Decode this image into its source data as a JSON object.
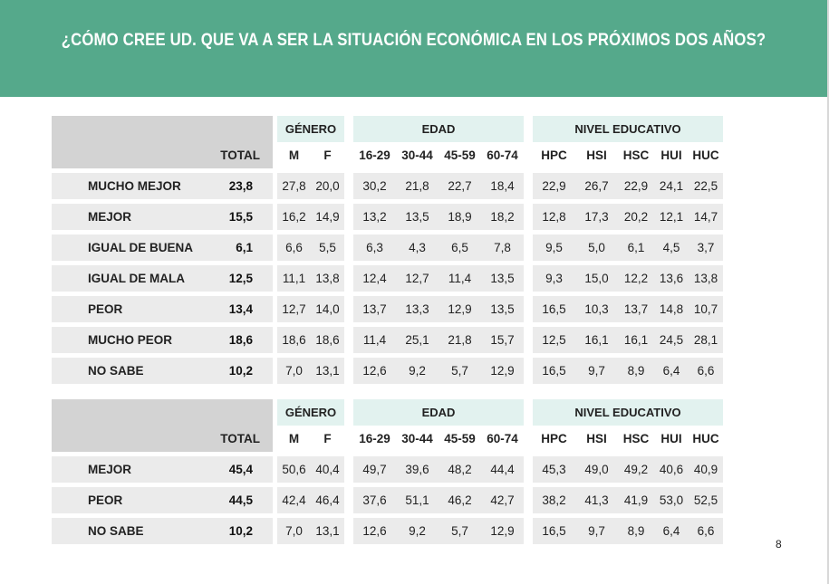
{
  "title": "¿CÓMO CREE UD. QUE VA A SER LA SITUACIÓN ECONÓMICA EN LOS PRÓXIMOS DOS AÑOS?",
  "page_number": "8",
  "colors": {
    "header_bg": "#55a98b",
    "row_bg": "#ebebeb",
    "group_header_bg": "#e2f2ef"
  },
  "group_headers": {
    "genero": "GÉNERO",
    "edad": "EDAD",
    "nivel": "NIVEL EDUCATIVO"
  },
  "columns": {
    "total": "TOTAL",
    "genero": [
      "M",
      "F"
    ],
    "edad": [
      "16-29",
      "30-44",
      "45-59",
      "60-74"
    ],
    "nivel": [
      "HPC",
      "HSI",
      "HSC",
      "HUI",
      "HUC"
    ]
  },
  "table1": {
    "rows": [
      {
        "label": "MUCHO MEJOR",
        "total": "23,8",
        "genero": [
          "27,8",
          "20,0"
        ],
        "edad": [
          "30,2",
          "21,8",
          "22,7",
          "18,4"
        ],
        "nivel": [
          "22,9",
          "26,7",
          "22,9",
          "24,1",
          "22,5"
        ]
      },
      {
        "label": "MEJOR",
        "total": "15,5",
        "genero": [
          "16,2",
          "14,9"
        ],
        "edad": [
          "13,2",
          "13,5",
          "18,9",
          "18,2"
        ],
        "nivel": [
          "12,8",
          "17,3",
          "20,2",
          "12,1",
          "14,7"
        ]
      },
      {
        "label": "IGUAL DE BUENA",
        "total": "6,1",
        "genero": [
          "6,6",
          "5,5"
        ],
        "edad": [
          "6,3",
          "4,3",
          "6,5",
          "7,8"
        ],
        "nivel": [
          "9,5",
          "5,0",
          "6,1",
          "4,5",
          "3,7"
        ]
      },
      {
        "label": "IGUAL DE MALA",
        "total": "12,5",
        "genero": [
          "11,1",
          "13,8"
        ],
        "edad": [
          "12,4",
          "12,7",
          "11,4",
          "13,5"
        ],
        "nivel": [
          "9,3",
          "15,0",
          "12,2",
          "13,6",
          "13,8"
        ]
      },
      {
        "label": "PEOR",
        "total": "13,4",
        "genero": [
          "12,7",
          "14,0"
        ],
        "edad": [
          "13,7",
          "13,3",
          "12,9",
          "13,5"
        ],
        "nivel": [
          "16,5",
          "10,3",
          "13,7",
          "14,8",
          "10,7"
        ]
      },
      {
        "label": "MUCHO PEOR",
        "total": "18,6",
        "genero": [
          "18,6",
          "18,6"
        ],
        "edad": [
          "11,4",
          "25,1",
          "21,8",
          "15,7"
        ],
        "nivel": [
          "12,5",
          "16,1",
          "16,1",
          "24,5",
          "28,1"
        ]
      },
      {
        "label": "NO SABE",
        "total": "10,2",
        "genero": [
          "7,0",
          "13,1"
        ],
        "edad": [
          "12,6",
          "9,2",
          "5,7",
          "12,9"
        ],
        "nivel": [
          "16,5",
          "9,7",
          "8,9",
          "6,4",
          "6,6"
        ]
      }
    ]
  },
  "table2": {
    "rows": [
      {
        "label": "MEJOR",
        "total": "45,4",
        "genero": [
          "50,6",
          "40,4"
        ],
        "edad": [
          "49,7",
          "39,6",
          "48,2",
          "44,4"
        ],
        "nivel": [
          "45,3",
          "49,0",
          "49,2",
          "40,6",
          "40,9"
        ]
      },
      {
        "label": "PEOR",
        "total": "44,5",
        "genero": [
          "42,4",
          "46,4"
        ],
        "edad": [
          "37,6",
          "51,1",
          "46,2",
          "42,7"
        ],
        "nivel": [
          "38,2",
          "41,3",
          "41,9",
          "53,0",
          "52,5"
        ]
      },
      {
        "label": "NO SABE",
        "total": "10,2",
        "genero": [
          "7,0",
          "13,1"
        ],
        "edad": [
          "12,6",
          "9,2",
          "5,7",
          "12,9"
        ],
        "nivel": [
          "16,5",
          "9,7",
          "8,9",
          "6,4",
          "6,6"
        ]
      }
    ]
  }
}
